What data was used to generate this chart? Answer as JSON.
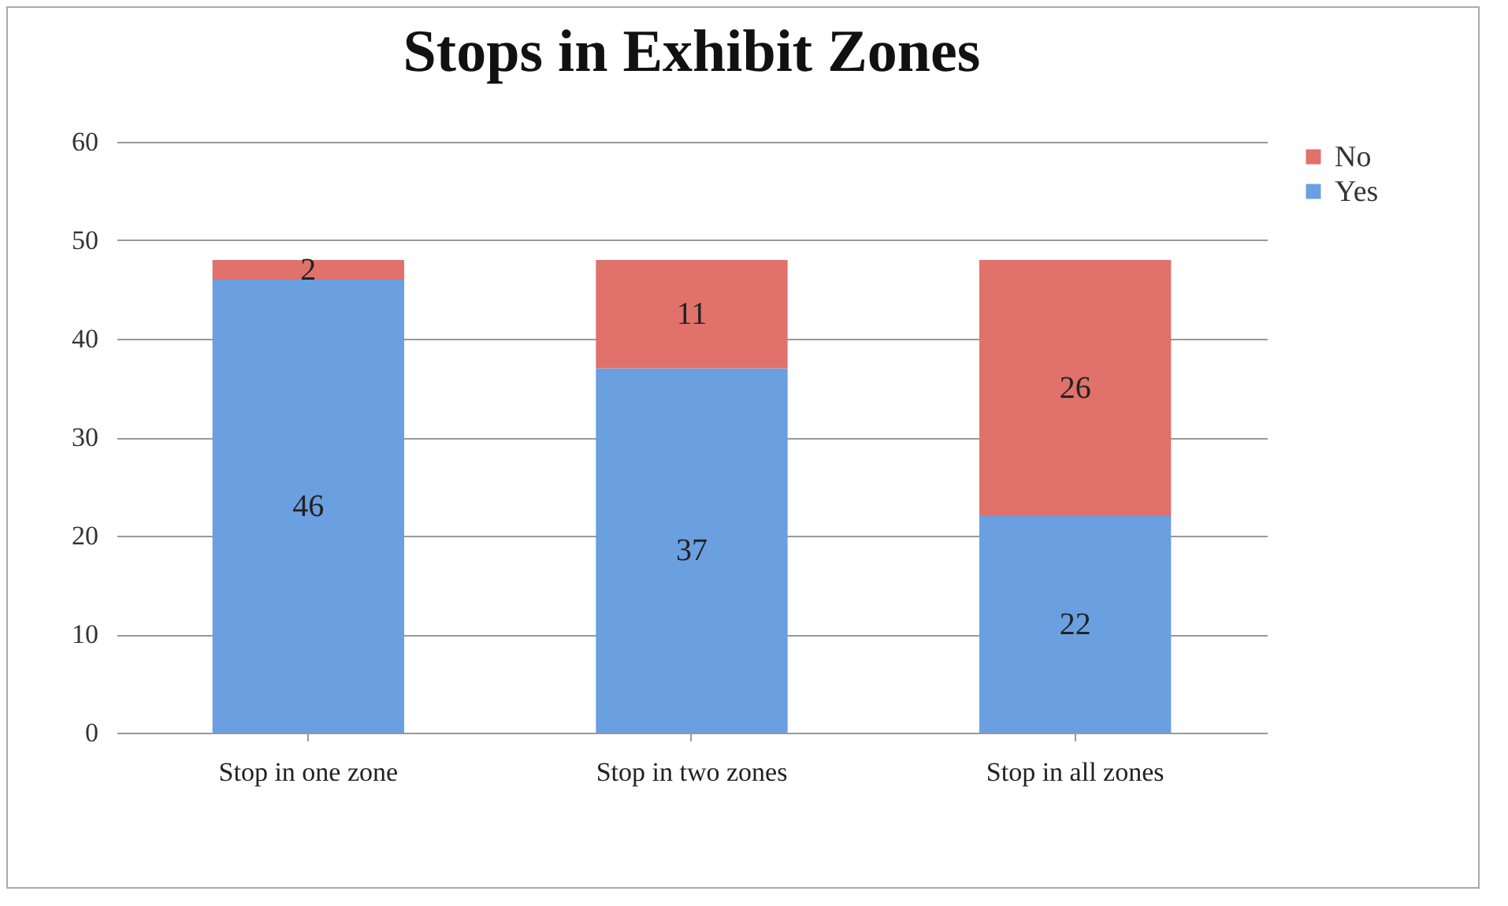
{
  "chart_data": {
    "type": "bar",
    "title": "Stops in Exhibit Zones",
    "categories": [
      "Stop in one zone",
      "Stop in two zones",
      "Stop in all zones"
    ],
    "stacked": true,
    "series": [
      {
        "name": "Yes",
        "color": "#6a9fe0",
        "values": [
          46,
          37,
          22
        ]
      },
      {
        "name": "No",
        "color": "#e0716b",
        "values": [
          2,
          11,
          26
        ]
      }
    ],
    "ylim": [
      0,
      60
    ],
    "yticks": [
      0,
      10,
      20,
      30,
      40,
      50,
      60
    ],
    "grid": "y",
    "legend": "right",
    "data_labels": true
  }
}
